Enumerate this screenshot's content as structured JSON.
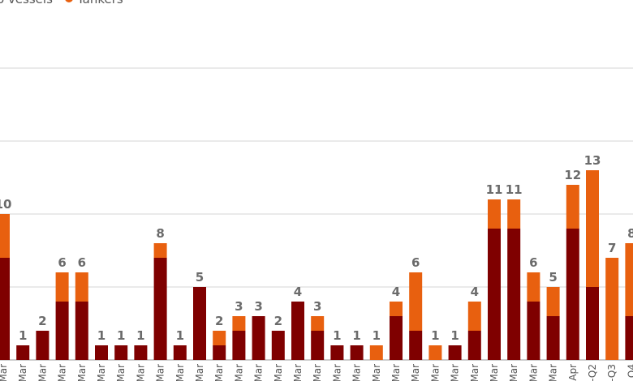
{
  "legend": [
    {
      "label": "o vessels",
      "color": "#7f0000"
    },
    {
      "label": "Tankers",
      "color": "#e8600f"
    }
  ],
  "chart_data": {
    "type": "bar",
    "stacked": true,
    "grid": true,
    "ylim": [
      0,
      20
    ],
    "categories": [
      "Mar",
      "Mar",
      "Mar",
      "Mar",
      "Mar",
      "Mar",
      "Mar",
      "Mar",
      "Mar",
      "Mar",
      "Mar",
      "Mar",
      "Mar",
      "Mar",
      "Mar",
      "Mar",
      "Mar",
      "Mar",
      "Mar",
      "Mar",
      "Mar",
      "Mar",
      "Mar",
      "Mar",
      "Mar",
      "Mar",
      "Mar",
      "Mar",
      "Mar",
      "Apr",
      "-Q2",
      "-Q3",
      "Q4"
    ],
    "series": [
      {
        "color": "#7f0000",
        "values": [
          7,
          1,
          2,
          4,
          4,
          1,
          1,
          1,
          7,
          1,
          5,
          1,
          2,
          3,
          2,
          4,
          2,
          1,
          1,
          0,
          3,
          2,
          0,
          1,
          2,
          9,
          9,
          4,
          3,
          9,
          5,
          0,
          3
        ]
      },
      {
        "color": "#e8600f",
        "values": [
          3,
          0,
          0,
          2,
          2,
          0,
          0,
          0,
          1,
          0,
          0,
          1,
          1,
          0,
          0,
          0,
          1,
          0,
          0,
          1,
          1,
          4,
          1,
          0,
          2,
          2,
          2,
          2,
          2,
          3,
          8,
          7,
          5
        ]
      }
    ],
    "totals": [
      "10",
      "1",
      "2",
      "6",
      "6",
      "1",
      "1",
      "1",
      "8",
      "1",
      "5",
      "2",
      "3",
      "3",
      "2",
      "4",
      "3",
      "1",
      "1",
      "1",
      "4",
      "6",
      "1",
      "1",
      "4",
      "11",
      "11",
      "6",
      "5",
      "12",
      "13",
      "7",
      "8"
    ]
  }
}
